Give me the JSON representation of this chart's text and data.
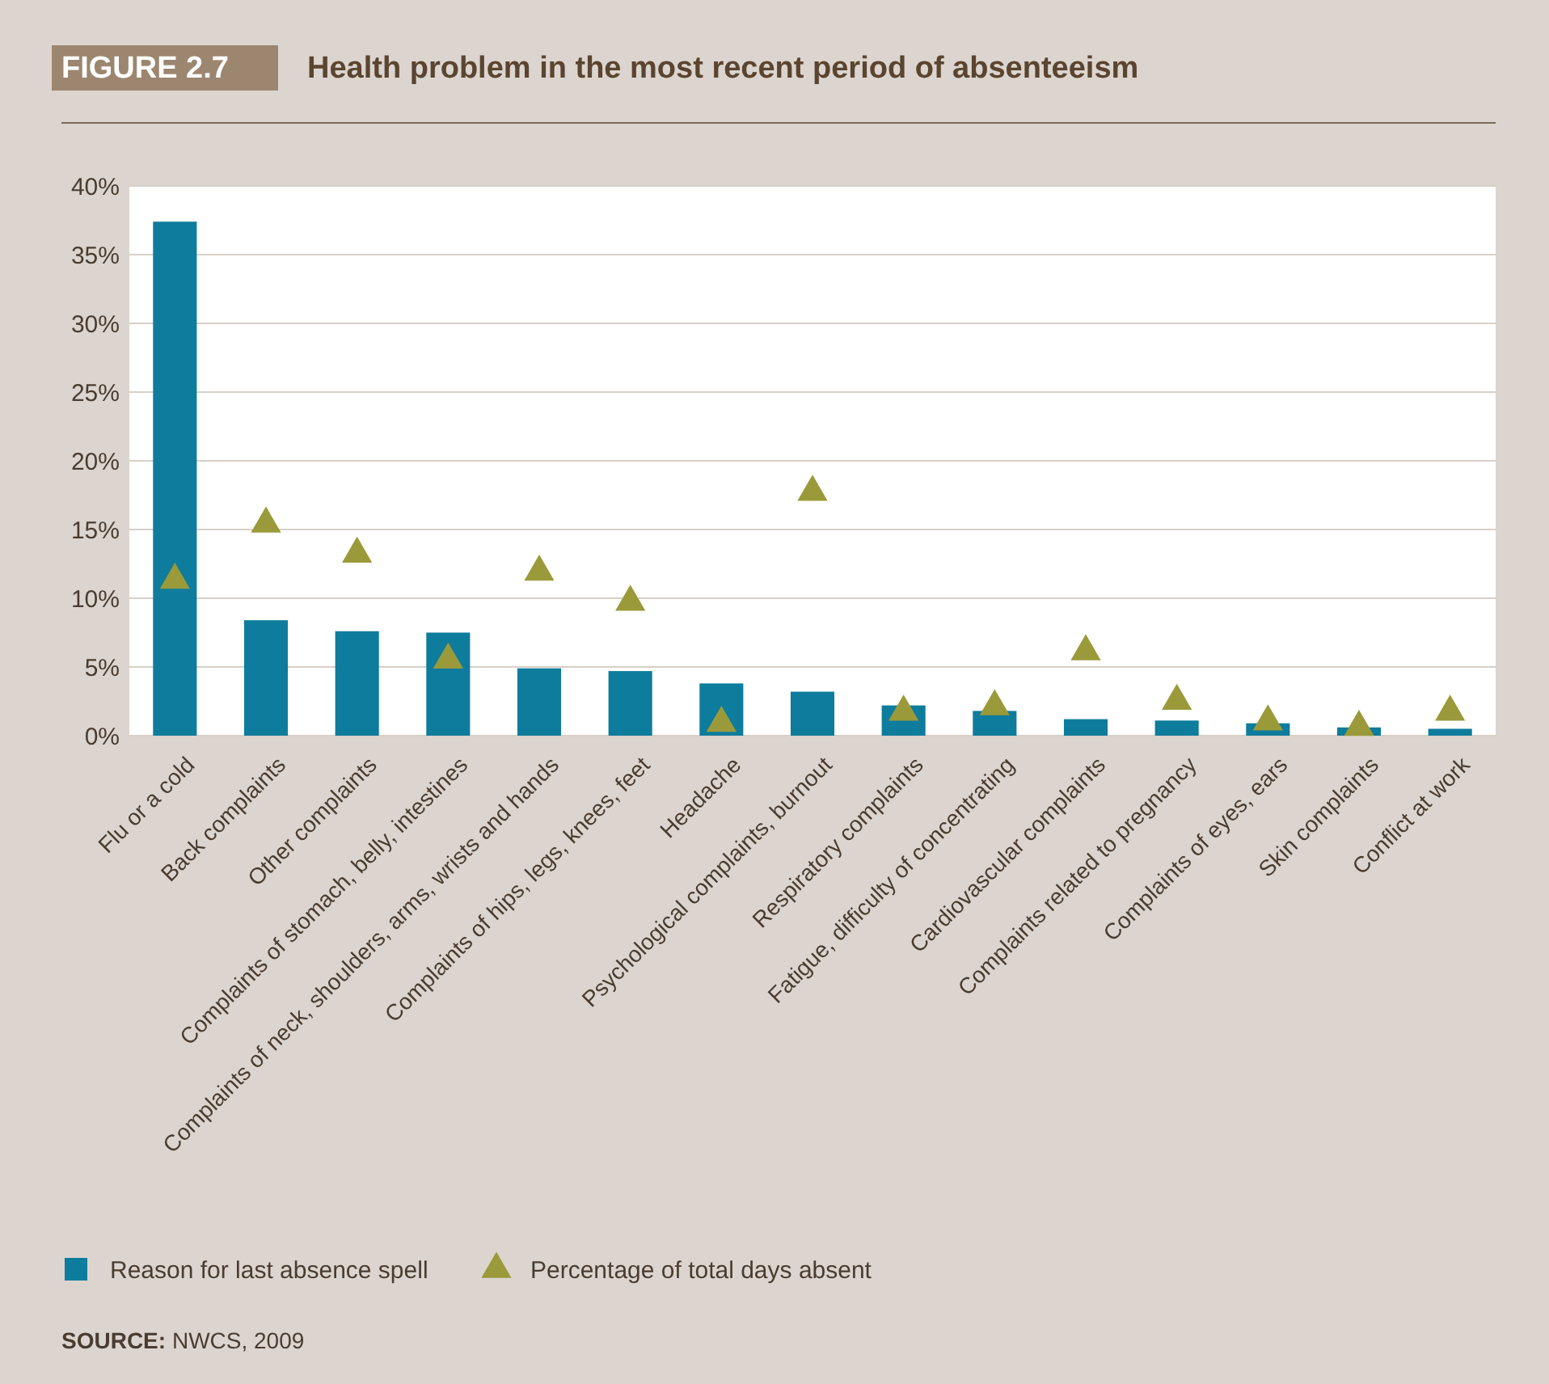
{
  "chart_data": {
    "type": "bar",
    "title": "Health problem in the most recent period of absenteeism",
    "categories": [
      "Flu or a cold",
      "Back complaints",
      "Other complaints",
      "Complaints of stomach, belly, intestines",
      "Complaints of neck, shoulders, arms, wrists and hands",
      "Complaints of hips, legs, knees, feet",
      "Headache",
      "Psychological complaints, burnout",
      "Respiratory complaints",
      "Fatigue, difficulty of concentrating",
      "Cardiovascular complaints",
      "Complaints related to pregnancy",
      "Complaints of eyes, ears",
      "Skin complaints",
      "Conflict at work"
    ],
    "series": [
      {
        "name": "Reason for last absence spell",
        "color": "#0e7c9c",
        "values": [
          37.4,
          8.4,
          7.6,
          7.5,
          4.9,
          4.7,
          3.8,
          3.2,
          2.2,
          1.8,
          1.2,
          1.1,
          0.9,
          0.6,
          0.5
        ]
      },
      {
        "name": "Percentage of total days absent",
        "type": "scatter",
        "marker": "triangle",
        "color": "#9a9a3a",
        "values": [
          11.2,
          15.3,
          13.1,
          5.4,
          11.8,
          9.6,
          0.8,
          17.6,
          1.6,
          2.0,
          6.0,
          2.4,
          0.9,
          0.5,
          1.6
        ]
      }
    ],
    "ylim": [
      0,
      40
    ],
    "yticks": [
      {
        "value": 0,
        "label": "0%"
      },
      {
        "value": 5,
        "label": "5%"
      },
      {
        "value": 10,
        "label": "10%"
      },
      {
        "value": 15,
        "label": "15%"
      },
      {
        "value": 20,
        "label": "20%"
      },
      {
        "value": 25,
        "label": "25%"
      },
      {
        "value": 30,
        "label": "30%"
      },
      {
        "value": 35,
        "label": "35%"
      },
      {
        "value": 40,
        "label": "40%"
      }
    ],
    "grid": "y",
    "legend": "bottom left",
    "annotations": [
      "FIGURE 2.7",
      "SOURCE: NWCS, 2009"
    ]
  }
}
